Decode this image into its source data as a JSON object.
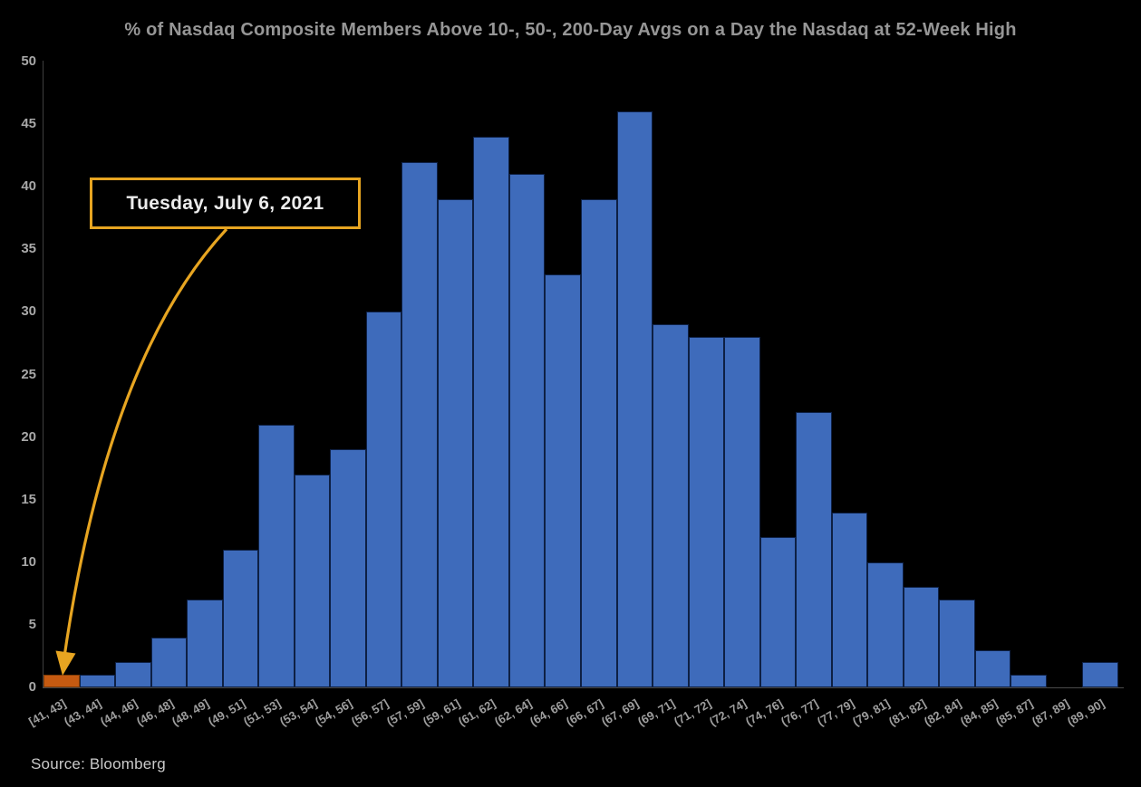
{
  "title": "% of Nasdaq Composite Members Above 10-, 50-, 200-Day Avgs on a Day the Nasdaq at 52-Week High",
  "source": "Source: Bloomberg",
  "annotation": {
    "label": "Tuesday, July 6, 2021",
    "points_to_category": "[41, 43]"
  },
  "colors": {
    "background": "#000000",
    "bar_fill": "#3E6BBB",
    "bar_border": "#0E2044",
    "highlight_fill": "#C55A11",
    "highlight_border": "#7E3A06",
    "accent_gold": "#E7A521",
    "title_text": "#969696",
    "axis_text": "#A8A8A8",
    "x_axis_text": "#9E9E9E",
    "annotation_text": "#ECECEC",
    "source_text": "#C9C9C9",
    "y_axis_line": "#3F3F3F",
    "x_axis_line": "#4A4A4A"
  },
  "chart_data": {
    "type": "bar",
    "title": "% of Nasdaq Composite Members Above 10-, 50-, 200-Day Avgs on a Day the Nasdaq at 52-Week High",
    "categories": [
      "[41, 43]",
      "(43, 44]",
      "(44, 46]",
      "(46, 48]",
      "(48, 49]",
      "(49, 51]",
      "(51, 53]",
      "(53, 54]",
      "(54, 56]",
      "(56, 57]",
      "(57, 59]",
      "(59, 61]",
      "(61, 62]",
      "(62, 64]",
      "(64, 66]",
      "(66, 67]",
      "(67, 69]",
      "(69, 71]",
      "(71, 72]",
      "(72, 74]",
      "(74, 76]",
      "(76, 77]",
      "(77, 79]",
      "(79, 81]",
      "(81, 82]",
      "(82, 84]",
      "(84, 85]",
      "(85, 87]",
      "(87, 89]",
      "(89, 90]"
    ],
    "values": [
      1,
      1,
      2,
      4,
      7,
      11,
      21,
      17,
      19,
      30,
      42,
      39,
      44,
      41,
      33,
      39,
      46,
      29,
      28,
      28,
      12,
      22,
      14,
      10,
      8,
      7,
      3,
      1,
      0,
      2
    ],
    "highlight_index": 0,
    "highlight_label": "Tuesday, July 6, 2021",
    "xlabel": "",
    "ylabel": "",
    "ylim": [
      0,
      50
    ],
    "yticks": [
      0,
      5,
      10,
      15,
      20,
      25,
      30,
      35,
      40,
      45,
      50
    ],
    "grid": false,
    "legend": false,
    "x_tick_rotation_deg": -30,
    "annotation_source": "Source: Bloomberg"
  }
}
